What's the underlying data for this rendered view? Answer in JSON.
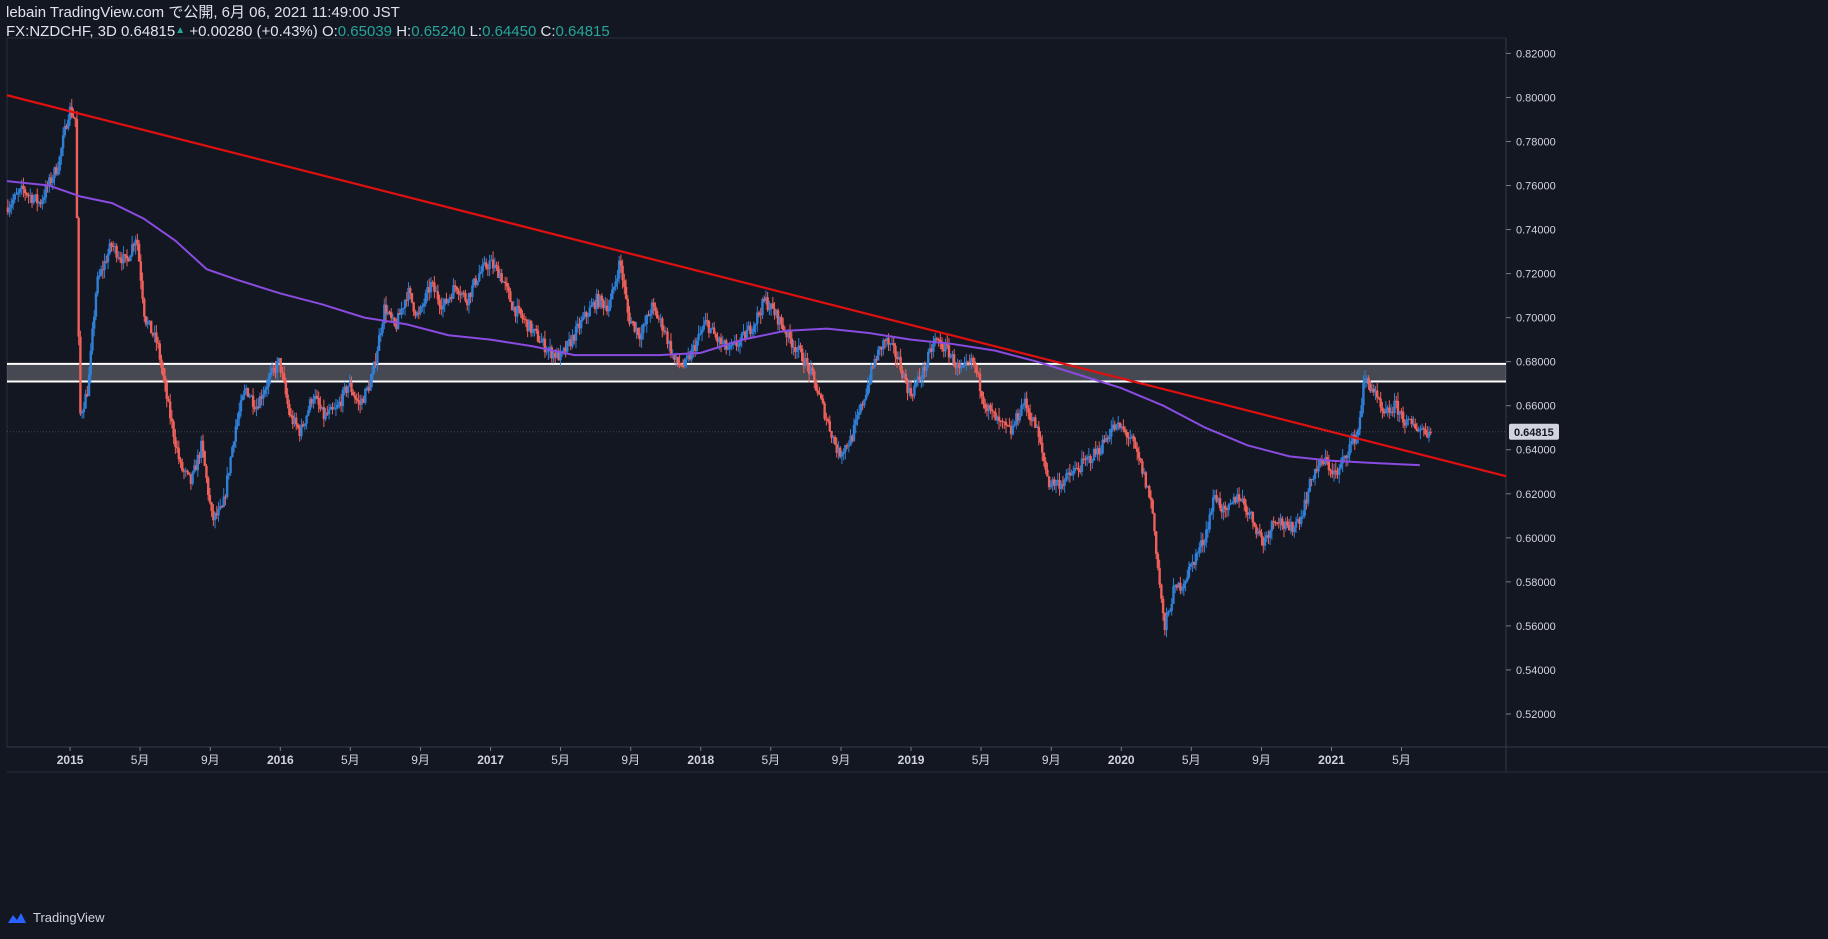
{
  "header": {
    "publish_line": "lebain TradingView.com で公開, 6月 06, 2021 11:49:00 JST",
    "symbol_line": "FX:NZDCHF, 3D",
    "last": "0.64815",
    "arrow": "▲",
    "change": "+0.00280 (+0.43%)",
    "o_label": "O:",
    "o_value": "0.65039",
    "h_label": "H:",
    "h_value": "0.65240",
    "l_label": "L:",
    "l_value": "0.64450",
    "c_label": "C:",
    "c_value": "0.64815"
  },
  "footer": {
    "brand": "TradingView",
    "logo_icon": "tradingview-logo-icon"
  },
  "colors": {
    "background": "#131722",
    "up": "#2f7fd6",
    "down": "#f0605a",
    "ma": "#8a4be0",
    "trendline": "#e01010",
    "zone": "#ffffff",
    "axis_text": "#d1d4dc",
    "price_tag": "#d1d4dc"
  },
  "chart_data": {
    "type": "candlestick",
    "symbol": "FX:NZDCHF",
    "timeframe": "3D",
    "y_axis": {
      "ticks": [
        "0.82000",
        "0.80000",
        "0.78000",
        "0.76000",
        "0.74000",
        "0.72000",
        "0.70000",
        "0.68000",
        "0.66000",
        "0.64000",
        "0.62000",
        "0.60000",
        "0.58000",
        "0.56000",
        "0.54000",
        "0.52000"
      ],
      "ylim": [
        0.505,
        0.827
      ],
      "current_price_label": "0.64815",
      "current_price": 0.64815
    },
    "x_axis": {
      "xlim": [
        2014.7,
        2021.83
      ],
      "ticks": [
        {
          "t": 2015.0,
          "label": "2015",
          "bold": true
        },
        {
          "t": 2015.333,
          "label": "5月",
          "bold": false
        },
        {
          "t": 2015.667,
          "label": "9月",
          "bold": false
        },
        {
          "t": 2016.0,
          "label": "2016",
          "bold": true
        },
        {
          "t": 2016.333,
          "label": "5月",
          "bold": false
        },
        {
          "t": 2016.667,
          "label": "9月",
          "bold": false
        },
        {
          "t": 2017.0,
          "label": "2017",
          "bold": true
        },
        {
          "t": 2017.333,
          "label": "5月",
          "bold": false
        },
        {
          "t": 2017.667,
          "label": "9月",
          "bold": false
        },
        {
          "t": 2018.0,
          "label": "2018",
          "bold": true
        },
        {
          "t": 2018.333,
          "label": "5月",
          "bold": false
        },
        {
          "t": 2018.667,
          "label": "9月",
          "bold": false
        },
        {
          "t": 2019.0,
          "label": "2019",
          "bold": true
        },
        {
          "t": 2019.333,
          "label": "5月",
          "bold": false
        },
        {
          "t": 2019.667,
          "label": "9月",
          "bold": false
        },
        {
          "t": 2020.0,
          "label": "2020",
          "bold": true
        },
        {
          "t": 2020.333,
          "label": "5月",
          "bold": false
        },
        {
          "t": 2020.667,
          "label": "9月",
          "bold": false
        },
        {
          "t": 2021.0,
          "label": "2021",
          "bold": true
        },
        {
          "t": 2021.333,
          "label": "5月",
          "bold": false
        }
      ]
    },
    "price_path": [
      [
        2014.7,
        0.75
      ],
      [
        2014.78,
        0.758
      ],
      [
        2014.86,
        0.752
      ],
      [
        2014.95,
        0.77
      ],
      [
        2015.0,
        0.795
      ],
      [
        2015.03,
        0.79
      ],
      [
        2015.05,
        0.655
      ],
      [
        2015.09,
        0.668
      ],
      [
        2015.13,
        0.715
      ],
      [
        2015.2,
        0.733
      ],
      [
        2015.27,
        0.725
      ],
      [
        2015.32,
        0.738
      ],
      [
        2015.36,
        0.7
      ],
      [
        2015.42,
        0.688
      ],
      [
        2015.47,
        0.66
      ],
      [
        2015.53,
        0.632
      ],
      [
        2015.58,
        0.625
      ],
      [
        2015.63,
        0.642
      ],
      [
        2015.68,
        0.608
      ],
      [
        2015.73,
        0.613
      ],
      [
        2015.79,
        0.65
      ],
      [
        2015.84,
        0.668
      ],
      [
        2015.89,
        0.66
      ],
      [
        2015.95,
        0.672
      ],
      [
        2016.0,
        0.68
      ],
      [
        2016.05,
        0.655
      ],
      [
        2016.1,
        0.648
      ],
      [
        2016.16,
        0.665
      ],
      [
        2016.21,
        0.655
      ],
      [
        2016.27,
        0.658
      ],
      [
        2016.33,
        0.67
      ],
      [
        2016.38,
        0.66
      ],
      [
        2016.44,
        0.672
      ],
      [
        2016.5,
        0.705
      ],
      [
        2016.55,
        0.695
      ],
      [
        2016.61,
        0.712
      ],
      [
        2016.66,
        0.7
      ],
      [
        2016.72,
        0.715
      ],
      [
        2016.78,
        0.705
      ],
      [
        2016.84,
        0.715
      ],
      [
        2016.89,
        0.708
      ],
      [
        2016.95,
        0.72
      ],
      [
        2017.0,
        0.725
      ],
      [
        2017.05,
        0.72
      ],
      [
        2017.11,
        0.705
      ],
      [
        2017.17,
        0.698
      ],
      [
        2017.22,
        0.692
      ],
      [
        2017.28,
        0.685
      ],
      [
        2017.34,
        0.682
      ],
      [
        2017.39,
        0.69
      ],
      [
        2017.45,
        0.7
      ],
      [
        2017.51,
        0.708
      ],
      [
        2017.57,
        0.705
      ],
      [
        2017.62,
        0.726
      ],
      [
        2017.66,
        0.7
      ],
      [
        2017.72,
        0.692
      ],
      [
        2017.77,
        0.705
      ],
      [
        2017.83,
        0.695
      ],
      [
        2017.88,
        0.68
      ],
      [
        2017.93,
        0.678
      ],
      [
        2017.98,
        0.688
      ],
      [
        2018.03,
        0.698
      ],
      [
        2018.08,
        0.69
      ],
      [
        2018.14,
        0.685
      ],
      [
        2018.2,
        0.69
      ],
      [
        2018.26,
        0.698
      ],
      [
        2018.31,
        0.708
      ],
      [
        2018.37,
        0.7
      ],
      [
        2018.43,
        0.69
      ],
      [
        2018.49,
        0.682
      ],
      [
        2018.54,
        0.672
      ],
      [
        2018.6,
        0.655
      ],
      [
        2018.66,
        0.638
      ],
      [
        2018.72,
        0.645
      ],
      [
        2018.77,
        0.66
      ],
      [
        2018.83,
        0.68
      ],
      [
        2018.88,
        0.69
      ],
      [
        2018.94,
        0.682
      ],
      [
        2019.0,
        0.665
      ],
      [
        2019.06,
        0.675
      ],
      [
        2019.12,
        0.69
      ],
      [
        2019.18,
        0.685
      ],
      [
        2019.24,
        0.675
      ],
      [
        2019.3,
        0.68
      ],
      [
        2019.36,
        0.66
      ],
      [
        2019.42,
        0.652
      ],
      [
        2019.48,
        0.648
      ],
      [
        2019.54,
        0.662
      ],
      [
        2019.6,
        0.65
      ],
      [
        2019.66,
        0.625
      ],
      [
        2019.72,
        0.625
      ],
      [
        2019.78,
        0.63
      ],
      [
        2019.84,
        0.635
      ],
      [
        2019.9,
        0.64
      ],
      [
        2019.96,
        0.65
      ],
      [
        2020.0,
        0.65
      ],
      [
        2020.05,
        0.645
      ],
      [
        2020.1,
        0.632
      ],
      [
        2020.15,
        0.615
      ],
      [
        2020.18,
        0.585
      ],
      [
        2020.21,
        0.558
      ],
      [
        2020.25,
        0.575
      ],
      [
        2020.3,
        0.58
      ],
      [
        2020.35,
        0.59
      ],
      [
        2020.4,
        0.6
      ],
      [
        2020.45,
        0.62
      ],
      [
        2020.5,
        0.61
      ],
      [
        2020.56,
        0.62
      ],
      [
        2020.62,
        0.61
      ],
      [
        2020.68,
        0.598
      ],
      [
        2020.74,
        0.61
      ],
      [
        2020.8,
        0.603
      ],
      [
        2020.86,
        0.61
      ],
      [
        2020.92,
        0.63
      ],
      [
        2020.97,
        0.635
      ],
      [
        2021.03,
        0.628
      ],
      [
        2021.08,
        0.64
      ],
      [
        2021.13,
        0.648
      ],
      [
        2021.16,
        0.672
      ],
      [
        2021.2,
        0.668
      ],
      [
        2021.25,
        0.655
      ],
      [
        2021.31,
        0.66
      ],
      [
        2021.36,
        0.652
      ],
      [
        2021.42,
        0.65
      ],
      [
        2021.47,
        0.648
      ]
    ],
    "moving_average": [
      [
        2014.7,
        0.762
      ],
      [
        2014.9,
        0.76
      ],
      [
        2015.05,
        0.755
      ],
      [
        2015.2,
        0.752
      ],
      [
        2015.35,
        0.745
      ],
      [
        2015.5,
        0.735
      ],
      [
        2015.65,
        0.722
      ],
      [
        2015.8,
        0.717
      ],
      [
        2016.0,
        0.711
      ],
      [
        2016.2,
        0.706
      ],
      [
        2016.4,
        0.7
      ],
      [
        2016.6,
        0.697
      ],
      [
        2016.8,
        0.692
      ],
      [
        2017.0,
        0.69
      ],
      [
        2017.2,
        0.687
      ],
      [
        2017.4,
        0.683
      ],
      [
        2017.6,
        0.683
      ],
      [
        2017.8,
        0.683
      ],
      [
        2018.0,
        0.684
      ],
      [
        2018.2,
        0.69
      ],
      [
        2018.4,
        0.694
      ],
      [
        2018.6,
        0.695
      ],
      [
        2018.8,
        0.693
      ],
      [
        2019.0,
        0.69
      ],
      [
        2019.2,
        0.688
      ],
      [
        2019.4,
        0.685
      ],
      [
        2019.6,
        0.68
      ],
      [
        2019.8,
        0.674
      ],
      [
        2020.0,
        0.668
      ],
      [
        2020.2,
        0.66
      ],
      [
        2020.4,
        0.65
      ],
      [
        2020.6,
        0.642
      ],
      [
        2020.8,
        0.637
      ],
      [
        2021.0,
        0.635
      ],
      [
        2021.2,
        0.634
      ],
      [
        2021.42,
        0.633
      ]
    ],
    "trendline": {
      "points": [
        [
          2014.7,
          0.801
        ],
        [
          2021.83,
          0.628
        ]
      ]
    },
    "zone": {
      "lines": [
        0.679,
        0.671
      ],
      "x_start": 2014.7,
      "x_end": 2021.83
    }
  }
}
